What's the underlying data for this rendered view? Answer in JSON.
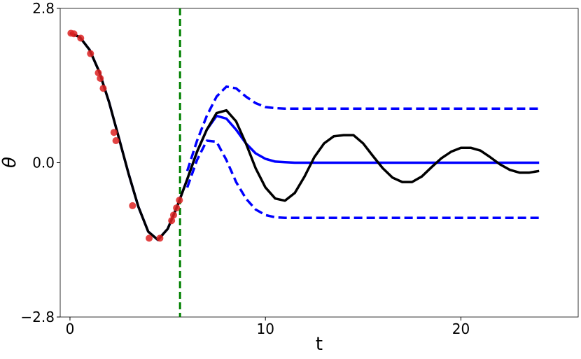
{
  "chart_data": {
    "type": "line",
    "xlabel": "t",
    "ylabel": "θ",
    "xlim": [
      -0.5,
      26
    ],
    "ylim": [
      -2.8,
      2.8
    ],
    "xticks": [
      0,
      10,
      20
    ],
    "yticks": [
      {
        "value": -2.8,
        "label": "−2.8"
      },
      {
        "value": 0,
        "label": "0.0"
      },
      2.8
    ],
    "vline": {
      "x": 5.63,
      "color": "#008000"
    },
    "x": [
      0,
      0.5,
      1,
      1.5,
      2,
      2.5,
      3,
      3.5,
      4,
      4.5,
      5,
      5.5,
      6,
      6.5,
      7,
      7.5,
      8,
      8.5,
      9,
      9.5,
      10,
      10.5,
      11,
      11.5,
      12,
      12.5,
      13,
      13.5,
      14,
      14.5,
      15,
      15.5,
      16,
      16.5,
      17,
      17.5,
      18,
      18.5,
      19,
      19.5,
      20,
      20.5,
      21,
      21.5,
      22,
      22.5,
      23,
      23.5,
      24
    ],
    "series": [
      {
        "color": "#0000ff",
        "dash": true,
        "values": [
          null,
          null,
          null,
          null,
          null,
          null,
          null,
          null,
          null,
          null,
          null,
          null,
          -0.15,
          0.4,
          0.85,
          1.2,
          1.38,
          1.35,
          1.2,
          1.08,
          1.01,
          0.99,
          0.98,
          0.98,
          0.98,
          0.98,
          0.98,
          0.98,
          0.98,
          0.98,
          0.98,
          0.98,
          0.98,
          0.98,
          0.98,
          0.98,
          0.98,
          0.98,
          0.98,
          0.98,
          0.98,
          0.98,
          0.98,
          0.98,
          0.98,
          0.98,
          0.98,
          0.98,
          0.98
        ]
      },
      {
        "color": "#0000ff",
        "dash": true,
        "values": [
          null,
          null,
          null,
          null,
          null,
          null,
          null,
          null,
          null,
          null,
          null,
          null,
          -0.45,
          0.05,
          0.4,
          0.38,
          0.05,
          -0.35,
          -0.65,
          -0.85,
          -0.95,
          -0.99,
          -1.0,
          -1.0,
          -1.0,
          -1.0,
          -1.0,
          -1.0,
          -1.0,
          -1.0,
          -1.0,
          -1.0,
          -1.0,
          -1.0,
          -1.0,
          -1.0,
          -1.0,
          -1.0,
          -1.0,
          -1.0,
          -1.0,
          -1.0,
          -1.0,
          -1.0,
          -1.0,
          -1.0,
          -1.0,
          -1.0,
          -1.0
        ]
      },
      {
        "color": "#0000ff",
        "values": [
          2.35,
          2.28,
          2.05,
          1.65,
          1.1,
          0.45,
          -0.2,
          -0.8,
          -1.25,
          -1.4,
          -1.2,
          -0.78,
          -0.3,
          0.2,
          0.6,
          0.85,
          0.8,
          0.6,
          0.35,
          0.17,
          0.07,
          0.02,
          0.01,
          0,
          0,
          0,
          0,
          0,
          0,
          0,
          0,
          0,
          0,
          0,
          0,
          0,
          0,
          0,
          0,
          0,
          0,
          0,
          0,
          0,
          0,
          0,
          0,
          0,
          0
        ]
      },
      {
        "color": "#000000",
        "values": [
          2.35,
          2.28,
          2.05,
          1.65,
          1.1,
          0.45,
          -0.2,
          -0.8,
          -1.25,
          -1.4,
          -1.2,
          -0.78,
          -0.3,
          0.2,
          0.6,
          0.9,
          0.95,
          0.75,
          0.35,
          -0.1,
          -0.45,
          -0.65,
          -0.69,
          -0.55,
          -0.25,
          0.1,
          0.35,
          0.48,
          0.5,
          0.5,
          0.35,
          0.12,
          -0.1,
          -0.27,
          -0.35,
          -0.35,
          -0.25,
          -0.08,
          0.08,
          0.2,
          0.27,
          0.27,
          0.22,
          0.1,
          -0.03,
          -0.13,
          -0.18,
          -0.18,
          -0.15
        ]
      },
      {
        "color": "#dd2222",
        "markers": true,
        "x": [
          0.05,
          0.2,
          0.55,
          1.05,
          1.45,
          1.55,
          1.7,
          2.25,
          2.35,
          3.2,
          4.05,
          4.6,
          5.2,
          5.3,
          5.45,
          5.6
        ],
        "values": [
          2.35,
          2.34,
          2.26,
          1.98,
          1.63,
          1.53,
          1.35,
          0.55,
          0.4,
          -0.78,
          -1.37,
          -1.37,
          -1.05,
          -0.95,
          -0.82,
          -0.68
        ]
      }
    ]
  }
}
